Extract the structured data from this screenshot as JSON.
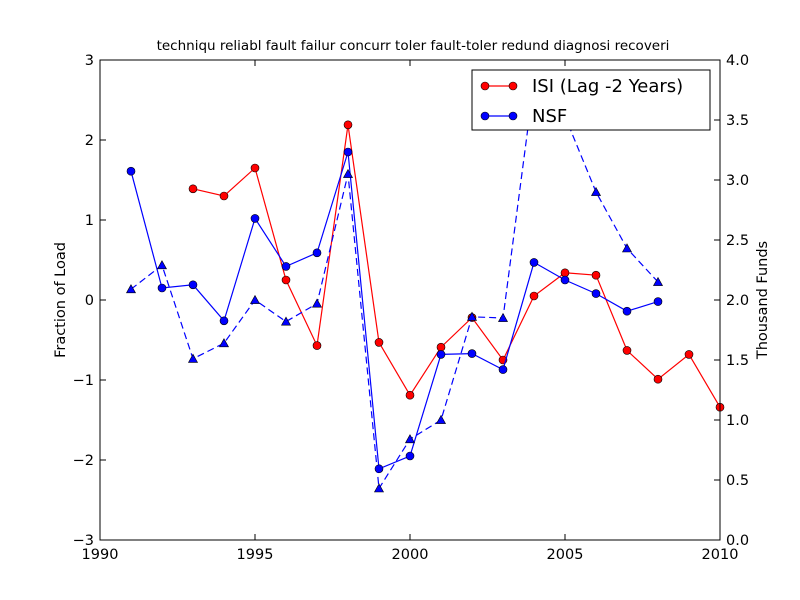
{
  "chart_data": {
    "type": "line",
    "title": "techniqu reliabl fault failur concurr toler fault-toler redund diagnosi recoveri",
    "ylabel_left": "Fraction of Load",
    "ylabel_right": "Thousand Funds",
    "xlim": [
      1990,
      2010
    ],
    "ylim_left": [
      -3,
      3
    ],
    "ylim_right": [
      0.0,
      4.0
    ],
    "x_ticks": [
      "1990",
      "1995",
      "2000",
      "2005",
      "2010"
    ],
    "y_left_ticks": [
      "−3",
      "−2",
      "−1",
      "0",
      "1",
      "2",
      "3"
    ],
    "y_right_ticks": [
      "0.0",
      "0.5",
      "1.0",
      "1.5",
      "2.0",
      "2.5",
      "3.0",
      "3.5",
      "4.0"
    ],
    "legend_location": "top-right",
    "series": [
      {
        "name": "ISI (Lag -2 Years)",
        "axis": "left",
        "color": "#ff0000",
        "marker": "circle",
        "style": "solid",
        "x": [
          1993,
          1994,
          1995,
          1996,
          1997,
          1998,
          1999,
          2000,
          2001,
          2002,
          2003,
          2004,
          2005,
          2006,
          2007,
          2008,
          2009,
          2010
        ],
        "values": [
          1.39,
          1.3,
          1.65,
          0.25,
          -0.57,
          2.19,
          -0.53,
          -1.19,
          -0.59,
          -0.22,
          -0.75,
          0.05,
          0.34,
          0.31,
          -0.63,
          -0.99,
          -0.68,
          -1.34
        ]
      },
      {
        "name": "NSF",
        "axis": "left",
        "color": "#0000ff",
        "marker": "circle",
        "style": "solid",
        "x": [
          1991,
          1992,
          1993,
          1994,
          1995,
          1996,
          1997,
          1998,
          1999,
          2000,
          2001,
          2002,
          2003,
          2004,
          2005,
          2006,
          2007,
          2008
        ],
        "values": [
          1.61,
          0.15,
          0.19,
          -0.26,
          1.02,
          0.42,
          0.59,
          1.85,
          -2.11,
          -1.95,
          -0.68,
          -0.67,
          -0.87,
          0.47,
          0.25,
          0.08,
          -0.14,
          -0.02
        ]
      },
      {
        "name": "",
        "axis": "right",
        "color": "#0000ff",
        "marker": "triangle",
        "style": "dashed",
        "x": [
          1991,
          1992,
          1993,
          1994,
          1995,
          1996,
          1997,
          1998,
          1999,
          2000,
          2001,
          2002,
          2003,
          2004,
          2005,
          2006,
          2007,
          2008
        ],
        "values": [
          2.09,
          2.29,
          1.51,
          1.64,
          2.0,
          1.82,
          1.97,
          3.05,
          0.43,
          0.84,
          1.0,
          1.86,
          1.85,
          3.82,
          3.53,
          2.9,
          2.43,
          2.15
        ]
      }
    ]
  }
}
